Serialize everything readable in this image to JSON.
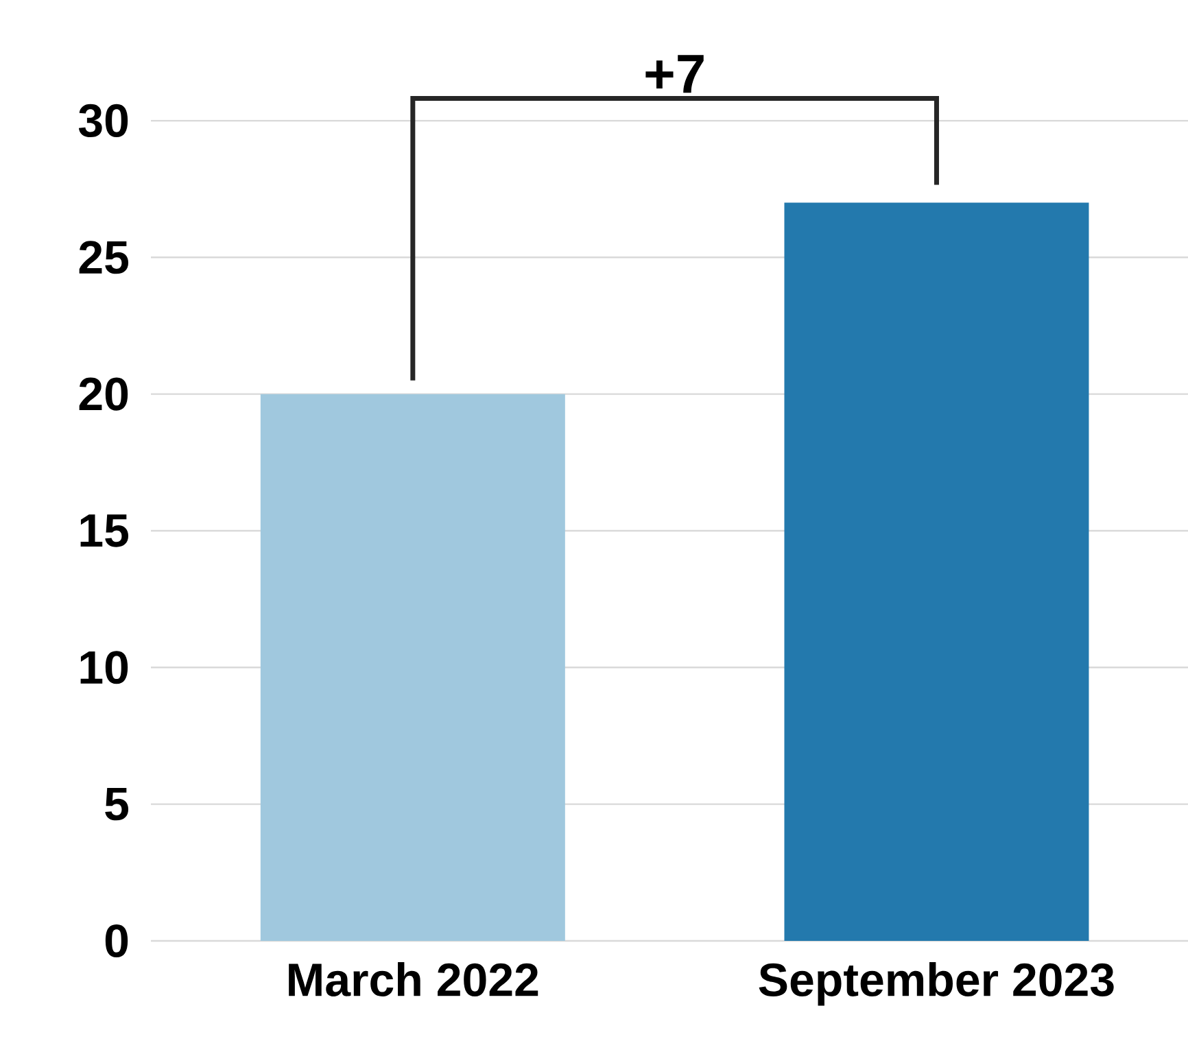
{
  "chart_data": {
    "type": "bar",
    "categories": [
      "March 2022",
      "September 2023"
    ],
    "values": [
      20,
      27
    ],
    "colors": [
      "#a0c8de",
      "#2379ad"
    ],
    "ylim": [
      0,
      30
    ],
    "yticks": [
      0,
      5,
      10,
      15,
      20,
      25,
      30
    ],
    "grid": "y",
    "annotations": [
      "+7"
    ]
  }
}
